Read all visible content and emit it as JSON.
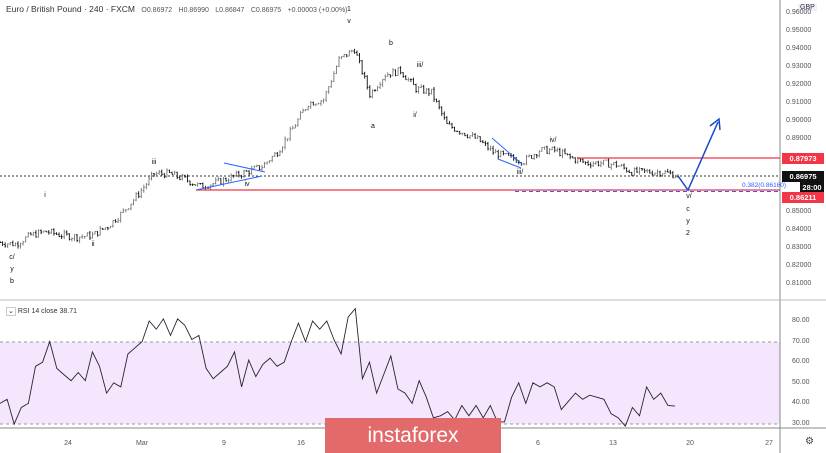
{
  "header": {
    "symbol": "Euro / British Pound",
    "interval": "240",
    "exchange": "FXCM",
    "open": "O0.86972",
    "high": "H0.86990",
    "low": "L0.86847",
    "close": "C0.86975",
    "change": "+0.00003 (+0.00%)"
  },
  "currency": "GBP",
  "price_axis": {
    "ticks": [
      "0.96000",
      "0.95000",
      "0.94000",
      "0.93000",
      "0.92000",
      "0.91000",
      "0.90000",
      "0.89000",
      "0.85000",
      "0.84000",
      "0.83000",
      "0.82000",
      "0.81000"
    ],
    "tick_values": [
      0.96,
      0.95,
      0.94,
      0.93,
      0.92,
      0.91,
      0.9,
      0.89,
      0.85,
      0.84,
      0.83,
      0.82,
      0.81
    ]
  },
  "price_tags": {
    "resistance": "0.87973",
    "last": "0.86975",
    "countdown": "28:00",
    "support": "0.86211"
  },
  "fib_label": "0.382(0.86160)",
  "colors": {
    "resistance": "#f23645",
    "support": "#f23645",
    "pattern": "#2962ff",
    "projection": "#1848cc",
    "rsi_band": "#f3e6fd",
    "rsi_line": "#2a2233",
    "logo": "#e36a6a"
  },
  "wave_labels": [
    "1",
    "v",
    "b",
    "iii/",
    "a",
    "i/",
    "iv/",
    "iii/",
    "iii",
    "iv",
    "i",
    "ii",
    "c/",
    "y",
    "b",
    "v/",
    "c",
    "y",
    "2"
  ],
  "rsi": {
    "title": "RSI 14 close",
    "value": "38.71",
    "ticks": [
      "80.00",
      "70.00",
      "60.00",
      "50.00",
      "40.00",
      "30.00"
    ]
  },
  "time_axis": [
    "24",
    "Mar",
    "9",
    "16",
    "6",
    "13",
    "20",
    "27"
  ],
  "watermark": "instaforex",
  "chart_data": {
    "type": "ohlc",
    "title": "Euro / British Pound · 240 · FXCM",
    "ylim": [
      0.805,
      0.962
    ],
    "approx_daily_close": [
      0.833,
      0.832,
      0.837,
      0.839,
      0.837,
      0.836,
      0.837,
      0.842,
      0.85,
      0.86,
      0.871,
      0.871,
      0.868,
      0.864,
      0.866,
      0.869,
      0.872,
      0.875,
      0.883,
      0.896,
      0.91,
      0.912,
      0.934,
      0.94,
      0.915,
      0.926,
      0.928,
      0.918,
      0.916,
      0.898,
      0.894,
      0.89,
      0.883,
      0.88,
      0.878,
      0.884,
      0.884,
      0.88,
      0.877,
      0.877,
      0.876,
      0.872,
      0.872,
      0.872,
      0.87
    ],
    "rsi_values": [
      40,
      42,
      30,
      38,
      40,
      58,
      60,
      70,
      57,
      54,
      51,
      55,
      51,
      65,
      58,
      45,
      50,
      48,
      64,
      67,
      70,
      80,
      76,
      81,
      73,
      81,
      78,
      71,
      73,
      57,
      52,
      55,
      58,
      65,
      48,
      61,
      53,
      59,
      62,
      58,
      60,
      70,
      79,
      70,
      80,
      76,
      80,
      71,
      64,
      82,
      86,
      52,
      60,
      45,
      54,
      63,
      47,
      45,
      40,
      51,
      43,
      33,
      34,
      36,
      32,
      39,
      34,
      39,
      33,
      39,
      31,
      31,
      43,
      50,
      40,
      50,
      48,
      50,
      48,
      37,
      41,
      45,
      42,
      44,
      43,
      42,
      35,
      33,
      29,
      38,
      34,
      48,
      42,
      45,
      39,
      38.71
    ],
    "rsi_ylim": [
      20,
      90
    ],
    "levels": {
      "resistance": 0.87973,
      "support": 0.86211,
      "fib_0382": 0.8616
    }
  }
}
